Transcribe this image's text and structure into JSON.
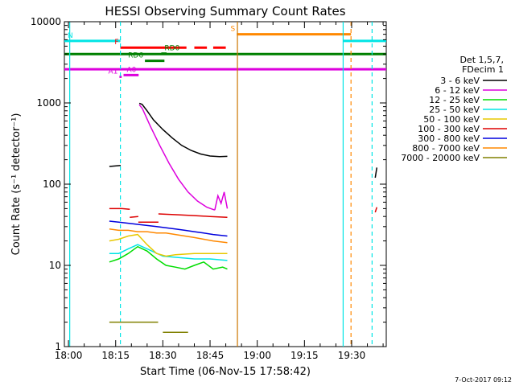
{
  "chart_data": {
    "type": "line",
    "title": "HESSI Observing Summary Count Rates",
    "xlabel": "Start Time (06-Nov-15 17:58:42)",
    "ylabel": "Count Rate (s⁻¹ detector⁻¹)",
    "yscale": "log",
    "ylim": [
      1,
      10000
    ],
    "xlim_minutes_after_1800": [
      -1.3,
      101
    ],
    "x_ticks": [
      "18:00",
      "18:15",
      "18:30",
      "18:45",
      "19:00",
      "19:15",
      "19:30"
    ],
    "y_ticks": [
      "1",
      "10",
      "100",
      "1000",
      "10000"
    ],
    "grid": false,
    "legend_position": "right",
    "legend_title": [
      "Det 1,5,7,",
      "FDecim 1"
    ],
    "footer_date": "7-Oct-2017 09:12",
    "series": [
      {
        "name": "3 - 6 keV",
        "color": "#000000",
        "segments": [
          {
            "x": [
              13,
              16.6
            ],
            "y": [
              165,
              170
            ]
          },
          {
            "x": [
              22.5,
              23.4,
              25,
              27,
              30,
              33,
              36,
              39,
              42,
              45,
              48,
              50.5
            ],
            "y": [
              990,
              960,
              800,
              620,
              470,
              370,
              300,
              260,
              235,
              222,
              218,
              220
            ]
          },
          {
            "x": [
              97.5,
              98
            ],
            "y": [
              120,
              160
            ]
          }
        ]
      },
      {
        "name": "6 - 12 keV",
        "color": "#dd00dd",
        "segments": [
          {
            "x": [
              22.5,
              23.5,
              26,
              29,
              32,
              35,
              38,
              41,
              44,
              46.5
            ],
            "y": [
              950,
              850,
              520,
              300,
              180,
              115,
              80,
              62,
              52,
              48
            ]
          },
          {
            "x": [
              46.5,
              47.5,
              48.5,
              49.5,
              50.5
            ],
            "y": [
              48,
              72,
              58,
              80,
              50
            ]
          }
        ]
      },
      {
        "name": "12 - 25 keV",
        "color": "#00dd00",
        "segments": [
          {
            "x": [
              13,
              16,
              19,
              22,
              25,
              28,
              31,
              34,
              37,
              40,
              43,
              46,
              49,
              50.5
            ],
            "y": [
              11,
              12,
              14,
              17,
              15,
              12,
              10,
              9.5,
              9,
              10,
              11,
              9,
              9.5,
              9
            ]
          }
        ]
      },
      {
        "name": "25 - 50 keV",
        "color": "#00e5e5",
        "segments": [
          {
            "x": [
              13,
              16,
              19,
              22,
              25,
              30,
              35,
              40,
              45,
              50.5
            ],
            "y": [
              14,
              14,
              16,
              18,
              16,
              13,
              12.5,
              12,
              12,
              11.5
            ]
          }
        ]
      },
      {
        "name": "50 - 100 keV",
        "color": "#e8c800",
        "segments": [
          {
            "x": [
              13,
              16,
              19,
              22,
              25,
              28,
              31,
              34,
              40,
              45,
              50.5
            ],
            "y": [
              20,
              21,
              23,
              24,
              18,
              14,
              13,
              13.5,
              14,
              14,
              14
            ]
          }
        ]
      },
      {
        "name": "100 - 300 keV",
        "color": "#dd0000",
        "segments": [
          {
            "x": [
              13,
              17,
              19.5
            ],
            "y": [
              50,
              50,
              49
            ]
          },
          {
            "x": [
              19.5,
              22.2
            ],
            "y": [
              39,
              40
            ]
          },
          {
            "x": [
              22.2,
              28,
              28.6
            ],
            "y": [
              34,
              34,
              34
            ]
          },
          {
            "x": [
              28.6,
              35,
              40,
              45,
              50.5
            ],
            "y": [
              43,
              42,
              41,
              40,
              39
            ]
          },
          {
            "x": [
              97.5,
              98
            ],
            "y": [
              45,
              52
            ]
          }
        ]
      },
      {
        "name": "300 - 800 keV",
        "color": "#0000dd",
        "segments": [
          {
            "x": [
              13,
              16,
              19,
              22,
              25,
              28,
              31,
              34,
              37,
              40,
              43,
              46,
              50.5
            ],
            "y": [
              35,
              34,
              33,
              32,
              31,
              30,
              29,
              28,
              27,
              26,
              25,
              24,
              23
            ]
          }
        ]
      },
      {
        "name": "800 - 7000 keV",
        "color": "#ff8800",
        "segments": [
          {
            "x": [
              13,
              16,
              19,
              22,
              25,
              28,
              31,
              34,
              37,
              40,
              43,
              46,
              50.5
            ],
            "y": [
              28,
              27,
              27,
              26,
              26,
              25,
              25,
              24,
              23,
              22,
              21,
              20,
              19
            ]
          }
        ]
      },
      {
        "name": "7000 - 20000 keV",
        "color": "#808000",
        "segments": [
          {
            "x": [
              13,
              28.5
            ],
            "y": [
              2,
              2
            ]
          },
          {
            "x": [
              30,
              38
            ],
            "y": [
              1.5,
              1.5
            ]
          }
        ]
      }
    ],
    "flag_bars": [
      {
        "label": "N",
        "color": "#00e5e5",
        "y": 5800,
        "segments": [
          [
            -1.3,
            16.5
          ],
          [
            87.3,
            101
          ]
        ]
      },
      {
        "label": "F",
        "color": "#ff0000",
        "y": 4800,
        "segments": [
          [
            16.5,
            37.5
          ],
          [
            40,
            44
          ],
          [
            46,
            50
          ]
        ]
      },
      {
        "label": "S",
        "color": "#ff8800",
        "y": 7000,
        "segments": [
          [
            53.5,
            89.8
          ]
        ]
      },
      {
        "label": "",
        "color": "#008000",
        "y": 4000,
        "segments": [
          [
            -1.3,
            101
          ]
        ]
      },
      {
        "label": "RD6",
        "color": "#008000",
        "y": 3300,
        "segments": [
          [
            24.3,
            30.5
          ]
        ]
      },
      {
        "label": "RD0",
        "color": "#008000",
        "y": 4050,
        "segments": [
          [
            29.5,
            31.2
          ]
        ]
      },
      {
        "label": "",
        "color": "#dd00dd",
        "y": 2600,
        "segments": [
          [
            -1.3,
            101
          ]
        ]
      },
      {
        "label": "A0",
        "color": "#dd00dd",
        "y": 2200,
        "segments": [
          [
            17.5,
            22.3
          ]
        ]
      },
      {
        "label": "A1",
        "color": "#dd00dd",
        "y": 2100,
        "segments": [
          [
            16.2,
            16.9
          ]
        ]
      }
    ],
    "vlines": [
      {
        "x": 0.4,
        "color": "#00e5e5",
        "style": "solid"
      },
      {
        "x": 16.5,
        "color": "#00e5e5",
        "style": "dashed"
      },
      {
        "x": 53.7,
        "color": "#cc7700",
        "style": "solid"
      },
      {
        "x": 87.3,
        "color": "#00e5e5",
        "style": "solid"
      },
      {
        "x": 89.8,
        "color": "#ff8800",
        "style": "dashed"
      },
      {
        "x": 96.5,
        "color": "#00e5e5",
        "style": "dashed"
      }
    ]
  }
}
